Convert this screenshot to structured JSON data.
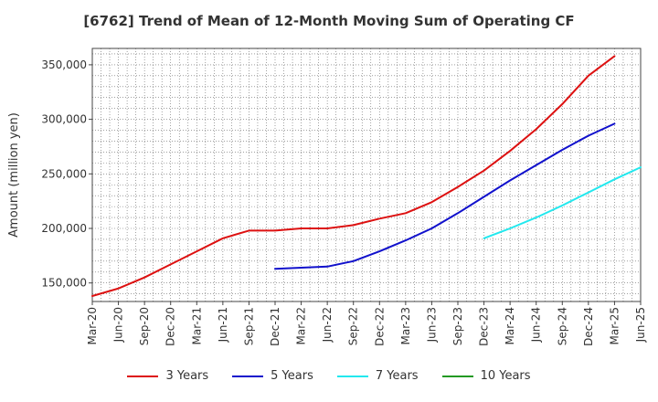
{
  "chart_data": {
    "type": "line",
    "title": "[6762]  Trend of Mean of 12-Month Moving Sum of Operating CF",
    "xlabel": "",
    "ylabel": "Amount (million yen)",
    "ylim": [
      133000,
      365000
    ],
    "y_ticks": [
      150000,
      200000,
      250000,
      300000,
      350000
    ],
    "y_tick_labels": [
      "150,000",
      "200,000",
      "250,000",
      "300,000",
      "350,000"
    ],
    "x_tick_labels": [
      "Mar-20",
      "Jun-20",
      "Sep-20",
      "Dec-20",
      "Mar-21",
      "Jun-21",
      "Sep-21",
      "Dec-21",
      "Mar-22",
      "Jun-22",
      "Sep-22",
      "Dec-22",
      "Mar-23",
      "Jun-23",
      "Sep-23",
      "Dec-23",
      "Mar-24",
      "Jun-24",
      "Sep-24",
      "Dec-24",
      "Mar-25",
      "Jun-25"
    ],
    "grid": true,
    "legend_position": "bottom",
    "series": [
      {
        "name": "3 Years",
        "color": "#dd1111",
        "start_index": 0,
        "values": [
          138000,
          145000,
          155000,
          167000,
          179000,
          191000,
          198000,
          198000,
          200000,
          200000,
          203000,
          209000,
          214000,
          224000,
          238000,
          253000,
          271000,
          291000,
          314000,
          340000,
          358000
        ]
      },
      {
        "name": "5 Years",
        "color": "#1111cc",
        "start_index": 7,
        "values": [
          163000,
          164000,
          165000,
          170000,
          179000,
          189000,
          200000,
          214000,
          229000,
          244000,
          258000,
          272000,
          285000,
          296000
        ]
      },
      {
        "name": "7 Years",
        "color": "#22e8ee",
        "start_index": 15,
        "values": [
          191000,
          200000,
          210000,
          221000,
          233000,
          245000,
          256000
        ]
      },
      {
        "name": "10 Years",
        "color": "#229922",
        "start_index": 0,
        "values": []
      }
    ]
  }
}
